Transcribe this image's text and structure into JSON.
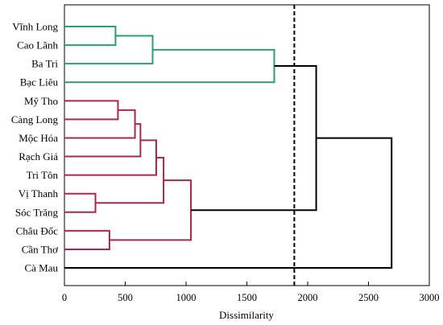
{
  "chart_data": {
    "type": "dendrogram",
    "xlabel": "Dissimilarity",
    "xlim": [
      0,
      3000
    ],
    "xticks": [
      0,
      500,
      1000,
      1500,
      2000,
      2500,
      3000
    ],
    "leaves": [
      "Vĩnh Long",
      "Cao Lãnh",
      "Ba Tri",
      "Bạc Liêu",
      "Mỹ Tho",
      "Càng Long",
      "Mộc Hóa",
      "Rạch Giá",
      "Tri Tôn",
      "Vị Thanh",
      "Sóc Trăng",
      "Châu Đốc",
      "Cần Thơ",
      "Cà Mau"
    ],
    "cut_threshold": 1890,
    "colors": {
      "cluster_green": "#2e9b72",
      "cluster_red": "#a8284a",
      "link": "#000000"
    },
    "merges": [
      {
        "id": "c1",
        "children": [
          "Vĩnh Long",
          "Cao Lãnh"
        ],
        "height": 420,
        "color": "green"
      },
      {
        "id": "c2",
        "children": [
          "c1",
          "Ba Tri"
        ],
        "height": 725,
        "color": "green"
      },
      {
        "id": "c3",
        "children": [
          "c2",
          "Bạc Liêu"
        ],
        "height": 1725,
        "color": "green"
      },
      {
        "id": "c4",
        "children": [
          "Mỹ Tho",
          "Càng Long"
        ],
        "height": 440,
        "color": "red"
      },
      {
        "id": "c5",
        "children": [
          "c4",
          "Mộc Hóa"
        ],
        "height": 580,
        "color": "red"
      },
      {
        "id": "c6",
        "children": [
          "c5",
          "Rạch Giá"
        ],
        "height": 625,
        "color": "red"
      },
      {
        "id": "c7",
        "children": [
          "c6",
          "Tri Tôn"
        ],
        "height": 755,
        "color": "red"
      },
      {
        "id": "c8",
        "children": [
          "Vị Thanh",
          "Sóc Trăng"
        ],
        "height": 255,
        "color": "red"
      },
      {
        "id": "c9",
        "children": [
          "c7",
          "c8"
        ],
        "height": 815,
        "color": "red"
      },
      {
        "id": "c10",
        "children": [
          "Châu Đốc",
          "Cần Thơ"
        ],
        "height": 370,
        "color": "red"
      },
      {
        "id": "c11",
        "children": [
          "c9",
          "c10"
        ],
        "height": 1040,
        "color": "red"
      },
      {
        "id": "c12",
        "children": [
          "c3",
          "c11"
        ],
        "height": 2070,
        "color": "black"
      },
      {
        "id": "c13",
        "children": [
          "c12",
          "Cà Mau"
        ],
        "height": 2690,
        "color": "black"
      }
    ]
  }
}
